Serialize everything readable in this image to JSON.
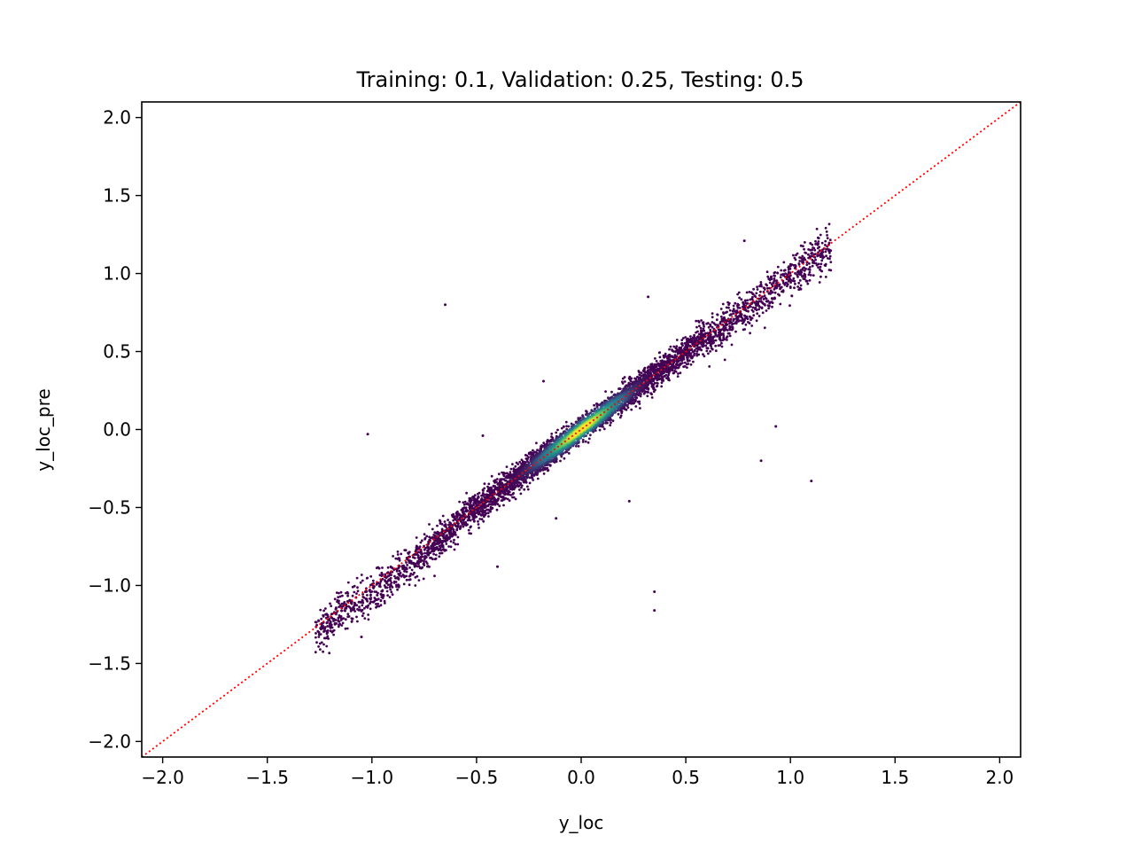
{
  "chart_data": {
    "type": "scatter",
    "title": "Training: 0.1, Validation: 0.25, Testing: 0.5",
    "xlabel": "y_loc",
    "ylabel": "y_loc_pre",
    "xlim": [
      -2.1,
      2.1
    ],
    "ylim": [
      -2.1,
      2.1
    ],
    "xticks": [
      -2.0,
      -1.5,
      -1.0,
      -0.5,
      0.0,
      0.5,
      1.0,
      1.5,
      2.0
    ],
    "yticks": [
      -2.0,
      -1.5,
      -1.0,
      -0.5,
      0.0,
      0.5,
      1.0,
      1.5,
      2.0
    ],
    "tick_labels_x": [
      "−2.0",
      "−1.5",
      "−1.0",
      "−0.5",
      "0.0",
      "0.5",
      "1.0",
      "1.5",
      "2.0"
    ],
    "tick_labels_y": [
      "−2.0",
      "−1.5",
      "−1.0",
      "−0.5",
      "0.0",
      "0.5",
      "1.0",
      "1.5",
      "2.0"
    ],
    "grid": false,
    "colormap": "viridis",
    "density_colored": true,
    "bulk_distribution": {
      "x_range": [
        -1.27,
        1.2
      ],
      "relationship": "y ≈ x",
      "center": [
        0.0,
        0.0
      ]
    },
    "outliers": [
      {
        "x": -0.65,
        "y": 0.8
      },
      {
        "x": -1.02,
        "y": -0.03
      },
      {
        "x": 0.35,
        "y": -1.04
      },
      {
        "x": 0.35,
        "y": -1.16
      },
      {
        "x": 1.1,
        "y": -0.33
      },
      {
        "x": 0.86,
        "y": -0.2
      },
      {
        "x": 0.93,
        "y": 0.02
      },
      {
        "x": 0.78,
        "y": 1.21
      },
      {
        "x": 0.32,
        "y": 0.85
      },
      {
        "x": 0.23,
        "y": -0.46
      },
      {
        "x": -0.47,
        "y": -0.04
      },
      {
        "x": -0.4,
        "y": -0.88
      },
      {
        "x": -1.05,
        "y": -1.33
      },
      {
        "x": -0.12,
        "y": -0.57
      },
      {
        "x": -0.18,
        "y": 0.31
      }
    ],
    "reference_line": {
      "x": [
        -2.1,
        2.1
      ],
      "y": [
        -2.1,
        2.1
      ],
      "style": "dotted",
      "color": "#ff0000"
    },
    "colors": {
      "low": "#440154",
      "mid_low": "#31688e",
      "mid": "#21918c",
      "mid_high": "#5ec962",
      "high": "#fde725",
      "reference": "#ff0000"
    }
  }
}
